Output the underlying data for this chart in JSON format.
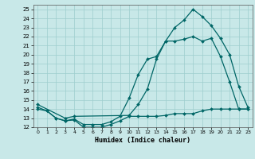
{
  "xlabel": "Humidex (Indice chaleur)",
  "bg_color": "#c8e8e8",
  "grid_color": "#9ecece",
  "line_color": "#006666",
  "xlim": [
    -0.5,
    23.5
  ],
  "ylim": [
    12,
    25.5
  ],
  "yticks": [
    12,
    13,
    14,
    15,
    16,
    17,
    18,
    19,
    20,
    21,
    22,
    23,
    24,
    25
  ],
  "xtick_labels": [
    "0",
    "1",
    "2",
    "3",
    "4",
    "5",
    "6",
    "7",
    "8",
    "9",
    "10",
    "11",
    "12",
    "13",
    "14",
    "15",
    "16",
    "17",
    "18",
    "19",
    "20",
    "21",
    "22",
    "23"
  ],
  "series1_x": [
    0,
    1,
    2,
    3,
    4,
    5,
    6,
    7,
    8,
    9,
    10,
    11,
    12,
    13,
    14,
    15,
    16,
    17,
    18,
    19,
    20,
    21,
    22,
    23
  ],
  "series1_y": [
    14.0,
    13.8,
    13.0,
    12.7,
    12.8,
    12.0,
    12.0,
    12.0,
    12.3,
    12.7,
    13.2,
    13.2,
    13.2,
    13.2,
    13.3,
    13.5,
    13.5,
    13.5,
    13.8,
    14.0,
    14.0,
    14.0,
    14.0,
    14.0
  ],
  "series2_x": [
    0,
    1,
    2,
    3,
    4,
    5,
    6,
    7,
    8,
    9,
    10,
    11,
    12,
    13,
    14,
    15,
    16,
    17,
    18,
    19,
    20,
    21,
    22,
    23
  ],
  "series2_y": [
    14.2,
    13.8,
    13.0,
    12.7,
    12.9,
    12.3,
    12.3,
    12.3,
    12.6,
    13.2,
    15.2,
    17.8,
    19.5,
    19.8,
    21.5,
    21.5,
    21.7,
    22.0,
    21.5,
    21.8,
    19.8,
    17.0,
    14.0,
    14.0
  ],
  "series3_x": [
    0,
    3,
    4,
    10,
    11,
    12,
    13,
    14,
    15,
    16,
    17,
    18,
    19,
    20,
    21,
    22,
    23
  ],
  "series3_y": [
    14.5,
    13.0,
    13.2,
    13.3,
    14.5,
    16.2,
    19.5,
    21.5,
    23.0,
    23.8,
    25.0,
    24.2,
    23.2,
    21.8,
    20.0,
    16.5,
    14.2
  ]
}
